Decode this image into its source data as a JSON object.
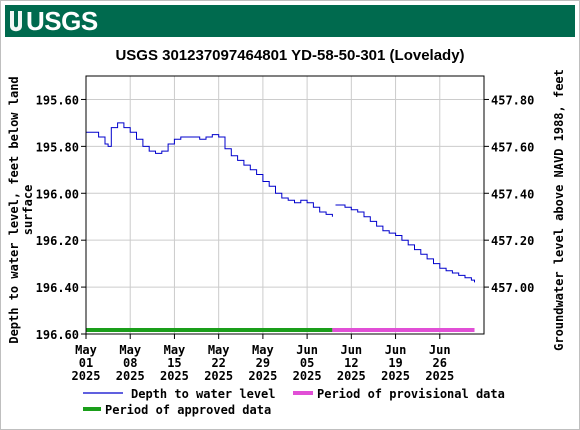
{
  "header": {
    "logo_text": "USGS",
    "brand_color": "#006a4e"
  },
  "chart_data": {
    "type": "line",
    "title": "USGS 301237097464801 YD-58-50-301 (Lovelady)",
    "ylabel_left_line1": "Depth to water level, feet below land",
    "ylabel_left_line2": "surface",
    "ylabel_right": "Groundwater level above NAVD 1988, feet",
    "ylim": [
      195.5,
      196.6
    ],
    "y_reversed": true,
    "y2_offset": 653.4,
    "xlim": [
      "2025-05-01",
      "2025-07-03"
    ],
    "grid": true,
    "left_ticks": [
      {
        "value": 195.6,
        "label": "195.60"
      },
      {
        "value": 195.8,
        "label": "195.80"
      },
      {
        "value": 196.0,
        "label": "196.00"
      },
      {
        "value": 196.2,
        "label": "196.20"
      },
      {
        "value": 196.4,
        "label": "196.40"
      },
      {
        "value": 196.6,
        "label": "196.60"
      }
    ],
    "right_ticks": [
      {
        "value": 457.8,
        "label": "457.80"
      },
      {
        "value": 457.6,
        "label": "457.60"
      },
      {
        "value": 457.4,
        "label": "457.40"
      },
      {
        "value": 457.2,
        "label": "457.20"
      },
      {
        "value": 457.0,
        "label": "457.00"
      }
    ],
    "x_ticks": [
      {
        "date": "2025-05-01",
        "line1": "May",
        "line2": "01",
        "line3": "2025"
      },
      {
        "date": "2025-05-08",
        "line1": "May",
        "line2": "08",
        "line3": "2025"
      },
      {
        "date": "2025-05-15",
        "line1": "May",
        "line2": "15",
        "line3": "2025"
      },
      {
        "date": "2025-05-22",
        "line1": "May",
        "line2": "22",
        "line3": "2025"
      },
      {
        "date": "2025-05-29",
        "line1": "May",
        "line2": "29",
        "line3": "2025"
      },
      {
        "date": "2025-06-05",
        "line1": "Jun",
        "line2": "05",
        "line3": "2025"
      },
      {
        "date": "2025-06-12",
        "line1": "Jun",
        "line2": "12",
        "line3": "2025"
      },
      {
        "date": "2025-06-19",
        "line1": "Jun",
        "line2": "19",
        "line3": "2025"
      },
      {
        "date": "2025-06-26",
        "line1": "Jun",
        "line2": "26",
        "line3": "2025"
      }
    ],
    "series": [
      {
        "name": "Depth to water level",
        "color": "#0000cc",
        "points": [
          [
            "2025-05-01",
            195.74
          ],
          [
            "2025-05-02",
            195.74
          ],
          [
            "2025-05-03",
            195.76
          ],
          [
            "2025-05-04",
            195.79
          ],
          [
            "2025-05-04 12:00",
            195.8
          ],
          [
            "2025-05-05",
            195.72
          ],
          [
            "2025-05-06",
            195.7
          ],
          [
            "2025-05-07",
            195.72
          ],
          [
            "2025-05-08",
            195.74
          ],
          [
            "2025-05-09",
            195.77
          ],
          [
            "2025-05-10",
            195.8
          ],
          [
            "2025-05-11",
            195.82
          ],
          [
            "2025-05-12",
            195.83
          ],
          [
            "2025-05-13",
            195.82
          ],
          [
            "2025-05-14",
            195.79
          ],
          [
            "2025-05-15",
            195.77
          ],
          [
            "2025-05-16",
            195.76
          ],
          [
            "2025-05-17",
            195.76
          ],
          [
            "2025-05-18",
            195.76
          ],
          [
            "2025-05-19",
            195.77
          ],
          [
            "2025-05-20",
            195.76
          ],
          [
            "2025-05-21",
            195.75
          ],
          [
            "2025-05-22",
            195.76
          ],
          [
            "2025-05-23",
            195.81
          ],
          [
            "2025-05-24",
            195.84
          ],
          [
            "2025-05-25",
            195.86
          ],
          [
            "2025-05-26",
            195.88
          ],
          [
            "2025-05-27",
            195.9
          ],
          [
            "2025-05-28",
            195.92
          ],
          [
            "2025-05-29",
            195.95
          ],
          [
            "2025-05-30",
            195.97
          ],
          [
            "2025-05-31",
            196.0
          ],
          [
            "2025-06-01",
            196.02
          ],
          [
            "2025-06-02",
            196.03
          ],
          [
            "2025-06-03",
            196.04
          ],
          [
            "2025-06-04",
            196.03
          ],
          [
            "2025-06-05",
            196.04
          ],
          [
            "2025-06-06",
            196.06
          ],
          [
            "2025-06-07",
            196.08
          ],
          [
            "2025-06-08",
            196.09
          ],
          [
            "2025-06-09",
            196.1
          ]
        ]
      },
      {
        "name": "Depth to water level (segment 2)",
        "color": "#0000cc",
        "points": [
          [
            "2025-06-09 12:00",
            196.05
          ],
          [
            "2025-06-10",
            196.05
          ],
          [
            "2025-06-11",
            196.06
          ],
          [
            "2025-06-12",
            196.07
          ],
          [
            "2025-06-13",
            196.08
          ],
          [
            "2025-06-14",
            196.1
          ],
          [
            "2025-06-15",
            196.12
          ],
          [
            "2025-06-16",
            196.14
          ],
          [
            "2025-06-17",
            196.16
          ],
          [
            "2025-06-18",
            196.17
          ],
          [
            "2025-06-19",
            196.18
          ],
          [
            "2025-06-20",
            196.2
          ],
          [
            "2025-06-21",
            196.22
          ],
          [
            "2025-06-22",
            196.24
          ],
          [
            "2025-06-23",
            196.26
          ],
          [
            "2025-06-24",
            196.28
          ],
          [
            "2025-06-25",
            196.3
          ],
          [
            "2025-06-26",
            196.32
          ],
          [
            "2025-06-27",
            196.33
          ],
          [
            "2025-06-28",
            196.34
          ],
          [
            "2025-06-29",
            196.35
          ],
          [
            "2025-06-30",
            196.36
          ],
          [
            "2025-07-01",
            196.37
          ],
          [
            "2025-07-01 12:00",
            196.38
          ]
        ]
      }
    ],
    "approval_bars": [
      {
        "name": "Period of approved data",
        "color": "#1a9e1a",
        "start": "2025-05-01",
        "end": "2025-06-09"
      },
      {
        "name": "Period of provisional data",
        "color": "#e14fd6",
        "start": "2025-06-09",
        "end": "2025-07-01 12:00"
      }
    ],
    "legend": [
      {
        "label": "Depth to water level",
        "kind": "line",
        "color": "#0000cc"
      },
      {
        "label": "Period of provisional data",
        "kind": "bar",
        "color": "#e14fd6"
      },
      {
        "label": "Period of approved data",
        "kind": "bar",
        "color": "#1a9e1a"
      }
    ]
  }
}
